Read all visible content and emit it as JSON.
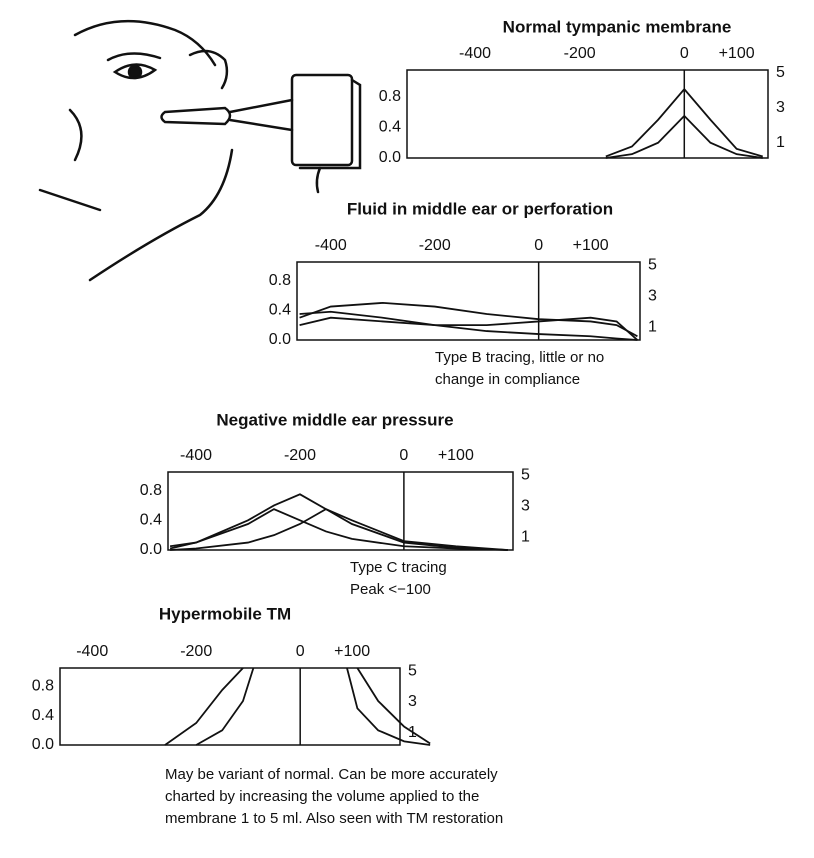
{
  "chart_data": [
    {
      "type": "line",
      "title": "Normal tympanic membrane",
      "x": [
        -150,
        -100,
        -50,
        0,
        50,
        100,
        150
      ],
      "series": [
        {
          "color": "#111",
          "values": [
            0.02,
            0.15,
            0.5,
            0.9,
            0.5,
            0.12,
            0.02
          ]
        },
        {
          "color": "#111",
          "values": [
            0,
            0.05,
            0.2,
            0.55,
            0.2,
            0.05,
            0
          ]
        }
      ],
      "xlim": [
        -530,
        160
      ],
      "xticks": [
        -400,
        -200,
        0,
        {
          "value": 100,
          "label": "+100"
        }
      ],
      "ylim": [
        0,
        1.15
      ],
      "yticks": [
        {
          "value": 0,
          "label": "0.0"
        },
        0.4,
        0.8
      ],
      "y2lim": [
        0.14,
        5.17
      ],
      "y2ticks": [
        5,
        3,
        1
      ]
    },
    {
      "type": "line",
      "title": "Fluid in middle ear or perforation",
      "x": [
        -460,
        -400,
        -300,
        -200,
        -100,
        0,
        100,
        150,
        190
      ],
      "series": [
        {
          "color": "#111",
          "values": [
            0.3,
            0.45,
            0.5,
            0.45,
            0.35,
            0.28,
            0.25,
            0.2,
            0.05
          ]
        },
        {
          "color": "#111",
          "values": [
            0.35,
            0.38,
            0.3,
            0.2,
            0.12,
            0.08,
            0.05,
            0.02,
            0
          ]
        },
        {
          "color": "#111",
          "values": [
            0.2,
            0.3,
            0.25,
            0.2,
            0.2,
            0.25,
            0.3,
            0.25,
            0
          ]
        }
      ],
      "xlim": [
        -465,
        195
      ],
      "xticks": [
        -400,
        -200,
        0,
        {
          "value": 100,
          "label": "+100"
        }
      ],
      "ylim": [
        0,
        1.05
      ],
      "yticks": [
        {
          "value": 0,
          "label": "0.0"
        },
        0.4,
        0.8
      ],
      "y2lim": [
        0.2,
        5.2
      ],
      "y2ticks": [
        5,
        3,
        1
      ],
      "annotation": [
        "Type B tracing, little or no",
        "change in compliance"
      ]
    },
    {
      "type": "line",
      "title": "Negative middle ear pressure",
      "x": [
        -450,
        -400,
        -300,
        -250,
        -200,
        -150,
        -100,
        0,
        100,
        200
      ],
      "series": [
        {
          "color": "#111",
          "values": [
            0.02,
            0.1,
            0.35,
            0.55,
            0.4,
            0.25,
            0.15,
            0.05,
            0.02,
            0
          ]
        },
        {
          "color": "#111",
          "values": [
            0.05,
            0.1,
            0.4,
            0.6,
            0.75,
            0.55,
            0.35,
            0.1,
            0.03,
            0
          ]
        },
        {
          "color": "#111",
          "values": [
            0,
            0.02,
            0.1,
            0.2,
            0.35,
            0.55,
            0.4,
            0.12,
            0.05,
            0
          ]
        }
      ],
      "xlim": [
        -454,
        210
      ],
      "xticks": [
        -400,
        -200,
        0,
        {
          "value": 100,
          "label": "+100"
        }
      ],
      "ylim": [
        0,
        1.05
      ],
      "yticks": [
        {
          "value": 0,
          "label": "0.0"
        },
        0.4,
        0.8
      ],
      "y2lim": [
        0.2,
        5.2
      ],
      "y2ticks": [
        5,
        3,
        1
      ],
      "annotation": [
        "Type C tracing",
        "Peak <−100"
      ]
    },
    {
      "type": "line",
      "title": "Hypermobile TM",
      "x": [
        -260,
        -200,
        -150,
        -110,
        -90,
        0,
        90,
        110,
        150,
        200,
        250
      ],
      "series": [
        {
          "color": "#111",
          "values": [
            0,
            0.3,
            0.75,
            1.05,
            null,
            null,
            null,
            1.05,
            0.6,
            0.25,
            0.02
          ]
        },
        {
          "color": "#111",
          "values": [
            null,
            0,
            0.2,
            0.6,
            1.05,
            null,
            1.05,
            0.5,
            0.2,
            0.05,
            0
          ]
        }
      ],
      "xlim": [
        -462,
        192
      ],
      "xticks": [
        -400,
        -200,
        0,
        {
          "value": 100,
          "label": "+100"
        }
      ],
      "ylim": [
        0,
        1.05
      ],
      "yticks": [
        {
          "value": 0,
          "label": "0.0"
        },
        0.4,
        0.8
      ],
      "y2lim": [
        0.2,
        5.2
      ],
      "y2ticks": [
        5,
        3,
        1
      ],
      "annotation": [
        "May be variant of normal. Can be more accurately",
        "charted by increasing the volume applied to the",
        "membrane 1 to 5 ml. Also seen with TM restoration"
      ]
    }
  ]
}
